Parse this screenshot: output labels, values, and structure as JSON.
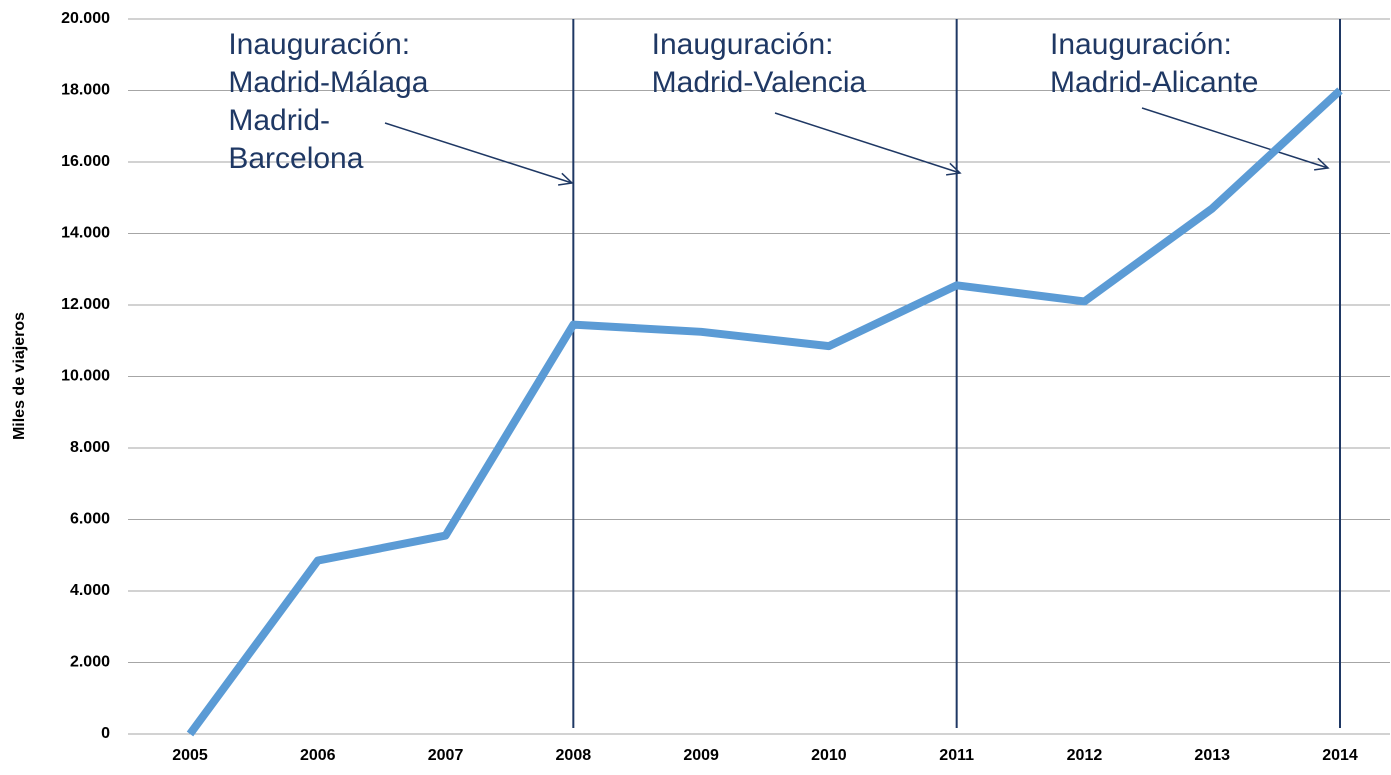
{
  "chart_data": {
    "type": "line",
    "ylabel": "Miles de viajeros",
    "categories": [
      "2005",
      "2006",
      "2007",
      "2008",
      "2009",
      "2010",
      "2011",
      "2012",
      "2013",
      "2014"
    ],
    "series": [
      {
        "color": "#5b9bd5",
        "values": [
          0,
          4850,
          5550,
          11450,
          11250,
          10850,
          12550,
          12100,
          14700,
          18000
        ]
      }
    ],
    "ylim": [
      0,
      20000
    ],
    "yticks": [
      0,
      {
        "value": 2000,
        "label": "2.000"
      },
      {
        "value": 4000,
        "label": "4.000"
      },
      {
        "value": 6000,
        "label": "6.000"
      },
      {
        "value": 8000,
        "label": "8.000"
      },
      {
        "value": 10000,
        "label": "10.000"
      },
      {
        "value": 12000,
        "label": "12.000"
      },
      {
        "value": 14000,
        "label": "14.000"
      },
      {
        "value": 16000,
        "label": "16.000"
      },
      {
        "value": 18000,
        "label": "18.000"
      },
      {
        "value": 20000,
        "label": "20.000"
      }
    ],
    "grid": true,
    "annotations": [
      {
        "x": 2008,
        "lines": [
          "Inauguración:",
          "Madrid-Málaga",
          "Madrid-",
          "Barcelona"
        ]
      },
      {
        "x": 2011,
        "lines": [
          "Inauguración:",
          "Madrid-Valencia"
        ]
      },
      {
        "x": 2014,
        "lines": [
          "Inauguración:",
          "Madrid-Alicante"
        ]
      }
    ],
    "annotation_color": "#1f3864"
  }
}
